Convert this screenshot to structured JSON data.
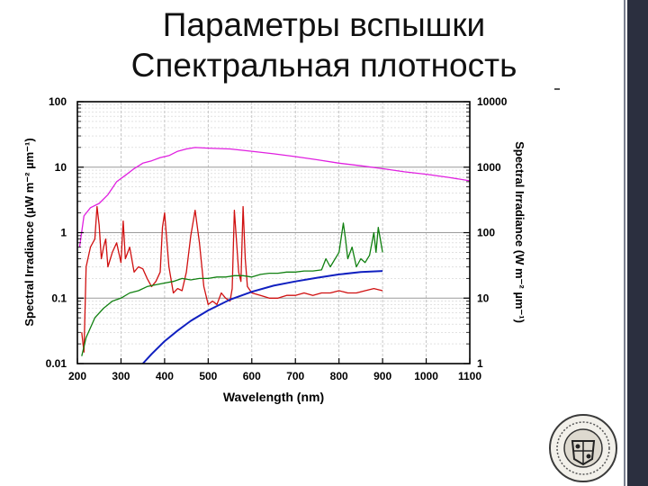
{
  "slide": {
    "title_line1": "Параметры вспышки",
    "title_line2": "Спектральная плотность"
  },
  "emblem": {
    "icon": "institution-seal-icon"
  },
  "chart_data": {
    "type": "line",
    "title": "",
    "xlabel": "Wavelength (nm)",
    "ylabel_left": "Spectral Irradiance (µW m⁻² µm⁻¹)",
    "ylabel_right": "Spectral Irradiance (W m⁻² µm⁻¹)",
    "xlim": [
      200,
      1100
    ],
    "ylim_left": [
      0.01,
      100
    ],
    "ylim_right": [
      1,
      10000
    ],
    "yscale": "log",
    "grid": true,
    "x_ticks": [
      "200",
      "300",
      "400",
      "500",
      "600",
      "700",
      "800",
      "900",
      "1000",
      "1100"
    ],
    "y_ticks_left": [
      "0.01",
      "0.1",
      "1",
      "10",
      "100"
    ],
    "y_ticks_right": [
      "1",
      "10",
      "100",
      "1000",
      "10000"
    ],
    "series": [
      {
        "color": "#e020e0",
        "axis": "right",
        "x": [
          205,
          215,
          230,
          250,
          270,
          290,
          310,
          330,
          350,
          370,
          390,
          410,
          430,
          450,
          470,
          500,
          550,
          600,
          650,
          700,
          750,
          800,
          850,
          900,
          950,
          1000,
          1050,
          1100
        ],
        "y": [
          60,
          180,
          240,
          280,
          380,
          600,
          750,
          950,
          1150,
          1250,
          1400,
          1500,
          1750,
          1900,
          2000,
          1950,
          1900,
          1750,
          1600,
          1450,
          1300,
          1150,
          1050,
          950,
          850,
          780,
          700,
          620
        ]
      },
      {
        "color": "#d01010",
        "axis": "left",
        "x": [
          210,
          215,
          220,
          230,
          240,
          245,
          250,
          255,
          260,
          265,
          270,
          280,
          290,
          300,
          305,
          310,
          320,
          330,
          340,
          350,
          360,
          370,
          380,
          390,
          395,
          400,
          410,
          420,
          430,
          440,
          450,
          460,
          470,
          480,
          490,
          500,
          510,
          520,
          530,
          540,
          550,
          555,
          560,
          570,
          575,
          580,
          585,
          590,
          600,
          620,
          640,
          660,
          680,
          700,
          720,
          740,
          760,
          780,
          800,
          820,
          840,
          860,
          880,
          900
        ],
        "y": [
          0.03,
          0.015,
          0.3,
          0.6,
          0.8,
          2.5,
          1.3,
          0.4,
          0.6,
          0.8,
          0.3,
          0.5,
          0.7,
          0.35,
          1.5,
          0.4,
          0.6,
          0.25,
          0.3,
          0.28,
          0.2,
          0.15,
          0.18,
          0.25,
          1.2,
          2.0,
          0.3,
          0.12,
          0.14,
          0.13,
          0.25,
          0.9,
          2.2,
          0.7,
          0.15,
          0.08,
          0.09,
          0.08,
          0.12,
          0.1,
          0.09,
          0.14,
          2.2,
          0.25,
          0.18,
          2.5,
          0.4,
          0.15,
          0.12,
          0.11,
          0.1,
          0.1,
          0.11,
          0.11,
          0.12,
          0.11,
          0.12,
          0.12,
          0.13,
          0.12,
          0.12,
          0.13,
          0.14,
          0.13
        ]
      },
      {
        "color": "#108010",
        "axis": "left",
        "x": [
          210,
          220,
          240,
          260,
          280,
          300,
          320,
          340,
          360,
          380,
          400,
          420,
          440,
          460,
          480,
          500,
          520,
          540,
          560,
          580,
          600,
          620,
          640,
          660,
          680,
          700,
          720,
          740,
          760,
          770,
          780,
          800,
          810,
          815,
          820,
          830,
          840,
          850,
          860,
          870,
          880,
          885,
          890,
          900
        ],
        "y": [
          0.013,
          0.025,
          0.05,
          0.07,
          0.09,
          0.1,
          0.12,
          0.13,
          0.15,
          0.16,
          0.17,
          0.18,
          0.2,
          0.19,
          0.2,
          0.2,
          0.21,
          0.21,
          0.22,
          0.22,
          0.21,
          0.23,
          0.24,
          0.24,
          0.25,
          0.25,
          0.26,
          0.26,
          0.27,
          0.4,
          0.3,
          0.5,
          1.4,
          0.8,
          0.4,
          0.6,
          0.3,
          0.4,
          0.35,
          0.45,
          1.0,
          0.5,
          1.2,
          0.5
        ]
      },
      {
        "color": "#1020c0",
        "axis": "left",
        "x": [
          350,
          370,
          400,
          430,
          460,
          500,
          550,
          600,
          650,
          700,
          750,
          800,
          850,
          900
        ],
        "y": [
          0.01,
          0.014,
          0.022,
          0.032,
          0.045,
          0.065,
          0.095,
          0.125,
          0.155,
          0.18,
          0.205,
          0.23,
          0.25,
          0.26
        ]
      }
    ]
  }
}
